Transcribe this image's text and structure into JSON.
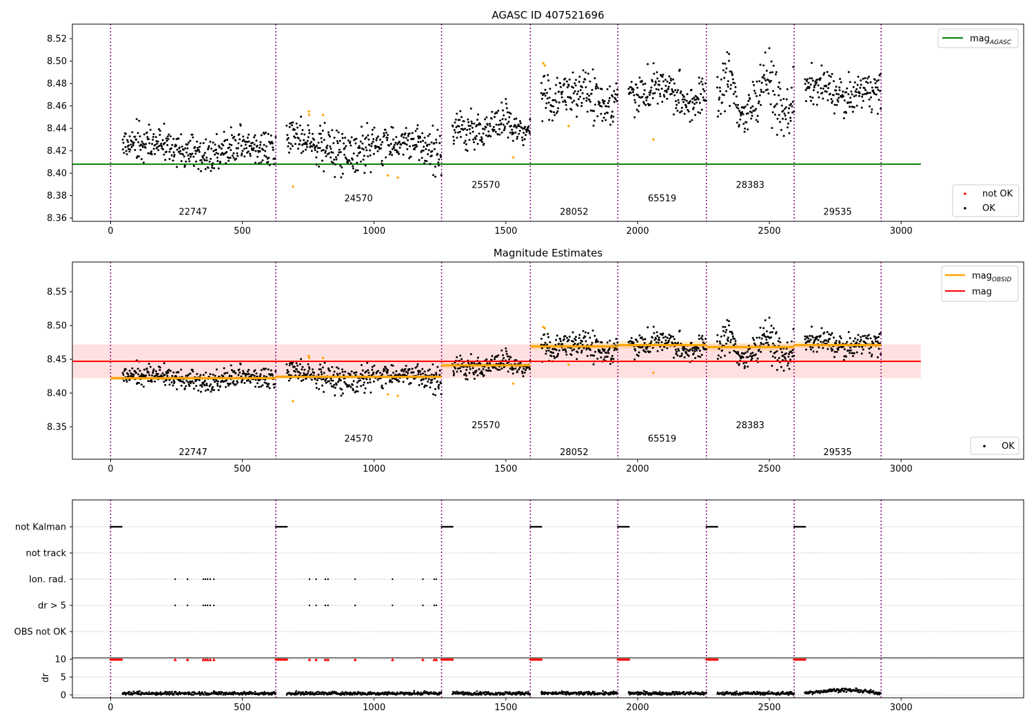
{
  "chart_data": [
    {
      "type": "scatter",
      "title": "AGASC ID 407521696",
      "xlim": [
        -145,
        3465
      ],
      "ylim": [
        8.357,
        8.533
      ],
      "xticks": [
        0,
        500,
        1000,
        1500,
        2000,
        2500,
        3000
      ],
      "yticks": [
        8.36,
        8.38,
        8.4,
        8.42,
        8.44,
        8.46,
        8.48,
        8.5,
        8.52
      ],
      "grid": false,
      "legend": [
        {
          "label": "mag",
          "sub": "AGASC",
          "color": "#008000",
          "kind": "line",
          "placement": "top-right"
        },
        {
          "label": "not OK",
          "color": "#ff0000",
          "kind": "dot",
          "placement": "lower-right"
        },
        {
          "label": "OK",
          "color": "#000000",
          "kind": "dot",
          "placement": "lower-right"
        }
      ],
      "mag_agasc": {
        "value": 8.408,
        "x": [
          -145,
          3075
        ],
        "color": "#008000"
      },
      "obsid_boundaries": [
        0,
        627,
        1256,
        1593,
        1925,
        2261,
        2594,
        2924
      ],
      "obsids": [
        {
          "label": "22747",
          "x": 313,
          "y": 8.366
        },
        {
          "label": "24570",
          "x": 941,
          "y": 8.378
        },
        {
          "label": "25570",
          "x": 1424,
          "y": 8.39
        },
        {
          "label": "28052",
          "x": 1759,
          "y": 8.366
        },
        {
          "label": "65519",
          "x": 2093,
          "y": 8.378
        },
        {
          "label": "28383",
          "x": 2427,
          "y": 8.39
        },
        {
          "label": "29535",
          "x": 2759,
          "y": 8.366
        }
      ],
      "segments": [
        {
          "x": [
            45,
            627
          ],
          "mean": 8.422,
          "spread": 0.008,
          "trend": -0.006
        },
        {
          "x": [
            667,
            1256
          ],
          "mean": 8.424,
          "spread": 0.009,
          "trend": -0.004
        },
        {
          "x": [
            1296,
            1593
          ],
          "mean": 8.441,
          "spread": 0.008,
          "trend": 0.002
        },
        {
          "x": [
            1633,
            1925
          ],
          "mean": 8.469,
          "spread": 0.01,
          "trend": -0.004
        },
        {
          "x": [
            1965,
            2261
          ],
          "mean": 8.472,
          "spread": 0.009,
          "trend": -0.012
        },
        {
          "x": [
            2301,
            2594
          ],
          "mean": 8.468,
          "spread": 0.012,
          "trend": 0.004
        },
        {
          "x": [
            2634,
            2924
          ],
          "mean": 8.472,
          "spread": 0.008,
          "trend": -0.006
        }
      ],
      "outliers_orange": [
        [
          692,
          8.388
        ],
        [
          752,
          8.455
        ],
        [
          754,
          8.452
        ],
        [
          806,
          8.452
        ],
        [
          1052,
          8.398
        ],
        [
          1090,
          8.396
        ],
        [
          1528,
          8.414
        ],
        [
          1642,
          8.498
        ],
        [
          1648,
          8.496
        ],
        [
          1738,
          8.442
        ],
        [
          2060,
          8.43
        ]
      ]
    },
    {
      "type": "scatter",
      "title": "Magnitude Estimates",
      "xlim": [
        -145,
        3465
      ],
      "ylim": [
        8.302,
        8.594
      ],
      "xticks": [
        0,
        500,
        1000,
        1500,
        2000,
        2500,
        3000
      ],
      "yticks": [
        8.35,
        8.4,
        8.45,
        8.5,
        8.55
      ],
      "grid": false,
      "legend": [
        {
          "label": "mag",
          "sub": "OBSID",
          "color": "#ffa500",
          "kind": "line",
          "placement": "top-right"
        },
        {
          "label": "mag",
          "sub": "",
          "color": "#ff0000",
          "kind": "line",
          "placement": "top-right"
        },
        {
          "label": "OK",
          "color": "#000000",
          "kind": "dot",
          "placement": "lower-right"
        }
      ],
      "mag": {
        "value": 8.447,
        "band": [
          8.422,
          8.472
        ],
        "x": [
          -145,
          3075
        ],
        "color": "#ff0000"
      },
      "mag_obsid": [
        {
          "x": [
            0,
            627
          ],
          "value": 8.422,
          "band": [
            8.419,
            8.425
          ]
        },
        {
          "x": [
            627,
            1256
          ],
          "value": 8.424,
          "band": [
            8.421,
            8.427
          ]
        },
        {
          "x": [
            1256,
            1593
          ],
          "value": 8.441,
          "band": [
            8.437,
            8.445
          ]
        },
        {
          "x": [
            1593,
            1925
          ],
          "value": 8.469,
          "band": [
            8.465,
            8.474
          ]
        },
        {
          "x": [
            1925,
            2261
          ],
          "value": 8.471,
          "band": [
            8.466,
            8.477
          ]
        },
        {
          "x": [
            2261,
            2594
          ],
          "value": 8.468,
          "band": [
            8.463,
            8.474
          ]
        },
        {
          "x": [
            2594,
            2924
          ],
          "value": 8.471,
          "band": [
            8.467,
            8.476
          ]
        }
      ],
      "obsid_boundaries": [
        0,
        627,
        1256,
        1593,
        1925,
        2261,
        2594,
        2924
      ],
      "obsids": [
        {
          "label": "22747",
          "x": 313,
          "y": 8.313
        },
        {
          "label": "24570",
          "x": 941,
          "y": 8.333
        },
        {
          "label": "25570",
          "x": 1424,
          "y": 8.353
        },
        {
          "label": "28052",
          "x": 1759,
          "y": 8.313
        },
        {
          "label": "65519",
          "x": 2093,
          "y": 8.333
        },
        {
          "label": "28383",
          "x": 2427,
          "y": 8.353
        },
        {
          "label": "29535",
          "x": 2759,
          "y": 8.313
        }
      ]
    },
    {
      "type": "scatter",
      "xlim": [
        -145,
        3465
      ],
      "categories": [
        "not Kalman",
        "not track",
        "Ion. rad.",
        "dr > 5",
        "OBS not OK"
      ],
      "xticks": [
        0,
        500,
        1000,
        1500,
        2000,
        2500,
        3000
      ],
      "dr_yticks": [
        0,
        5,
        10
      ],
      "dr_ylabel": "dr",
      "dr_ylim": [
        -0.8,
        10.4
      ],
      "grid": true,
      "not_kalman_ranges": [
        [
          0,
          42
        ],
        [
          627,
          669
        ],
        [
          1256,
          1298
        ],
        [
          1593,
          1635
        ],
        [
          1925,
          1967
        ],
        [
          2261,
          2303
        ],
        [
          2594,
          2636
        ]
      ],
      "ion_rad_x": [
        245,
        292,
        352,
        360,
        368,
        378,
        392,
        755,
        780,
        815,
        825,
        928,
        1070,
        1185,
        1228,
        1236
      ],
      "dr_gt5_x": [
        245,
        292,
        352,
        360,
        368,
        378,
        392,
        755,
        780,
        815,
        825,
        928,
        1070,
        1185,
        1228,
        1236
      ],
      "dr_spikes_x": [
        245,
        292,
        352,
        360,
        368,
        378,
        392,
        755,
        780,
        815,
        825,
        928,
        1070,
        1185,
        1228,
        1236
      ]
    }
  ]
}
